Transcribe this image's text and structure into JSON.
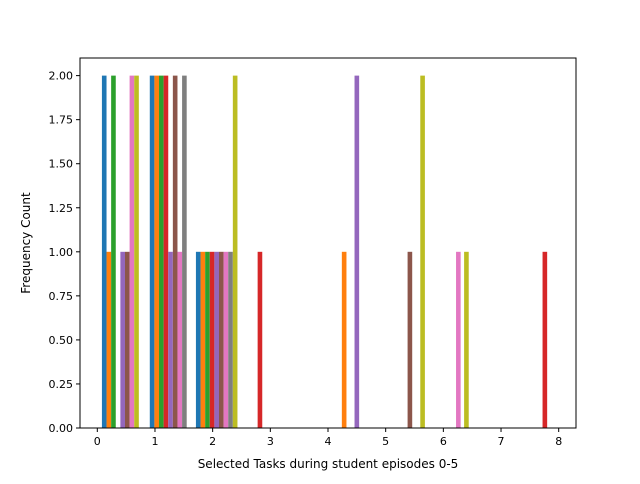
{
  "chart_data": {
    "type": "bar",
    "title": "",
    "xlabel": "Selected Tasks during student episodes 0-5",
    "ylabel": "Frequency Count",
    "xlim": [
      -0.3,
      8.3
    ],
    "ylim": [
      0,
      2.1
    ],
    "xticks": [
      "0",
      "1",
      "2",
      "3",
      "4",
      "5",
      "6",
      "7",
      "8"
    ],
    "yticks": [
      "0.00",
      "0.25",
      "0.50",
      "0.75",
      "1.00",
      "1.25",
      "1.50",
      "1.75",
      "2.00"
    ],
    "grid": false,
    "legend": "none",
    "bar_width": 0.08,
    "bars": [
      {
        "x": 0.12,
        "value": 2,
        "color": "#1f77b4"
      },
      {
        "x": 0.2,
        "value": 1,
        "color": "#ff7f0e"
      },
      {
        "x": 0.28,
        "value": 2,
        "color": "#2ca02c"
      },
      {
        "x": 0.44,
        "value": 1,
        "color": "#9467bd"
      },
      {
        "x": 0.52,
        "value": 1,
        "color": "#8c564b"
      },
      {
        "x": 0.6,
        "value": 2,
        "color": "#e377c2"
      },
      {
        "x": 0.68,
        "value": 2,
        "color": "#bcbd22"
      },
      {
        "x": 0.95,
        "value": 2,
        "color": "#1f77b4"
      },
      {
        "x": 1.03,
        "value": 2,
        "color": "#ff7f0e"
      },
      {
        "x": 1.11,
        "value": 2,
        "color": "#2ca02c"
      },
      {
        "x": 1.19,
        "value": 2,
        "color": "#d62728"
      },
      {
        "x": 1.27,
        "value": 1,
        "color": "#9467bd"
      },
      {
        "x": 1.35,
        "value": 2,
        "color": "#8c564b"
      },
      {
        "x": 1.43,
        "value": 1,
        "color": "#e377c2"
      },
      {
        "x": 1.51,
        "value": 2,
        "color": "#7f7f7f"
      },
      {
        "x": 1.75,
        "value": 1,
        "color": "#1f77b4"
      },
      {
        "x": 1.83,
        "value": 1,
        "color": "#ff7f0e"
      },
      {
        "x": 1.91,
        "value": 1,
        "color": "#2ca02c"
      },
      {
        "x": 1.99,
        "value": 1,
        "color": "#d62728"
      },
      {
        "x": 2.07,
        "value": 1,
        "color": "#9467bd"
      },
      {
        "x": 2.15,
        "value": 1,
        "color": "#8c564b"
      },
      {
        "x": 2.23,
        "value": 1,
        "color": "#e377c2"
      },
      {
        "x": 2.31,
        "value": 1,
        "color": "#7f7f7f"
      },
      {
        "x": 2.39,
        "value": 2,
        "color": "#bcbd22"
      },
      {
        "x": 2.82,
        "value": 1,
        "color": "#d62728"
      },
      {
        "x": 4.28,
        "value": 1,
        "color": "#ff7f0e"
      },
      {
        "x": 4.5,
        "value": 2,
        "color": "#9467bd"
      },
      {
        "x": 5.42,
        "value": 1,
        "color": "#8c564b"
      },
      {
        "x": 5.64,
        "value": 2,
        "color": "#bcbd22"
      },
      {
        "x": 6.26,
        "value": 1,
        "color": "#e377c2"
      },
      {
        "x": 6.4,
        "value": 1,
        "color": "#bcbd22"
      },
      {
        "x": 7.76,
        "value": 1,
        "color": "#d62728"
      }
    ]
  }
}
